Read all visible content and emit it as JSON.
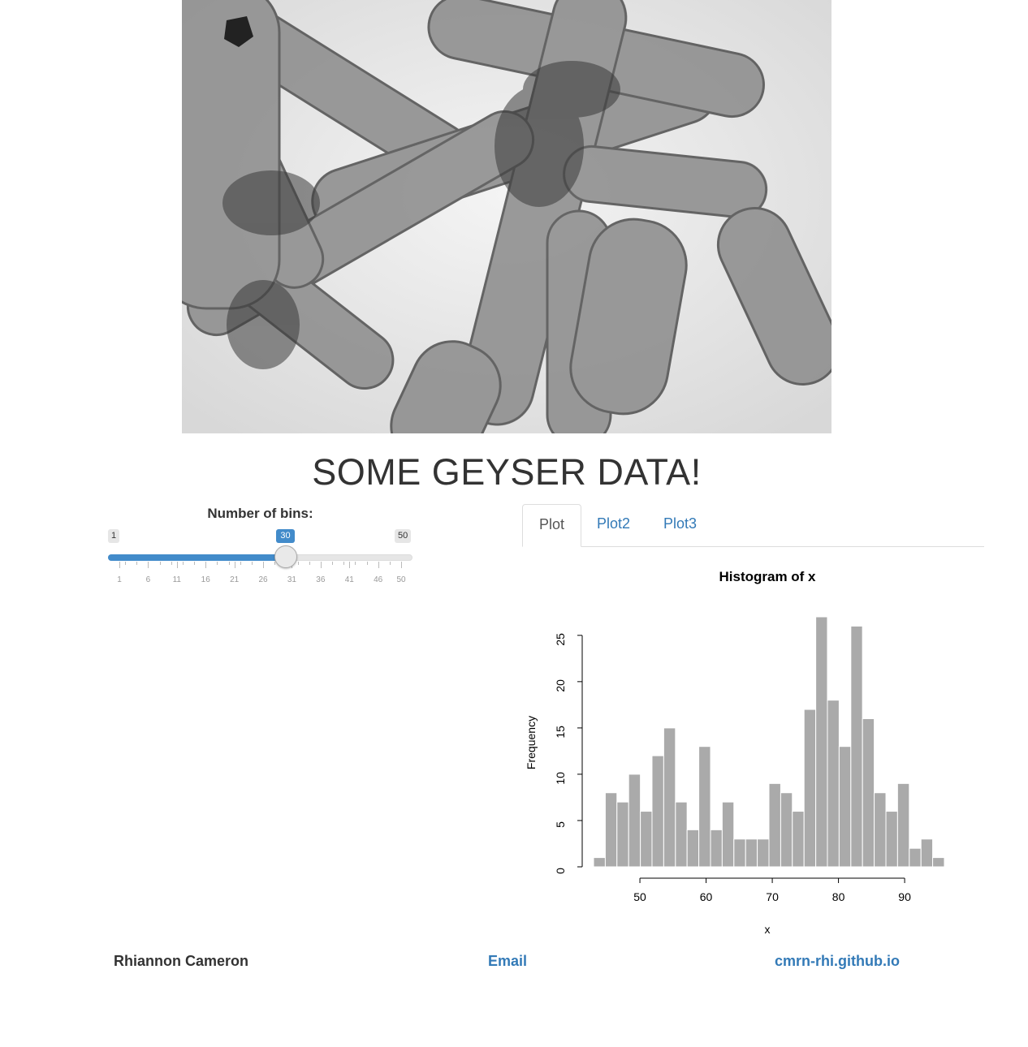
{
  "page_title": "SOME GEYSER DATA!",
  "slider": {
    "label": "Number of bins:",
    "min": 1,
    "max": 50,
    "value": 30,
    "min_label": "1",
    "max_label": "50",
    "value_label": "30",
    "tick_labels": [
      "1",
      "6",
      "11",
      "16",
      "21",
      "26",
      "31",
      "36",
      "41",
      "46",
      "50"
    ],
    "accent_color": "#428bca"
  },
  "tabs": [
    {
      "label": "Plot",
      "active": true
    },
    {
      "label": "Plot2",
      "active": false
    },
    {
      "label": "Plot3",
      "active": false
    }
  ],
  "chart_data": {
    "type": "bar",
    "title": "Histogram of x",
    "xlabel": "x",
    "ylabel": "Frequency",
    "bin_edges": [
      43,
      44.77,
      46.53,
      48.3,
      50.07,
      51.83,
      53.6,
      55.37,
      57.13,
      58.9,
      60.67,
      62.43,
      64.2,
      65.97,
      67.73,
      69.5,
      71.27,
      73.03,
      74.8,
      76.57,
      78.33,
      80.1,
      81.87,
      83.63,
      85.4,
      87.17,
      88.93,
      90.7,
      92.47,
      94.23,
      96
    ],
    "values": [
      1,
      8,
      7,
      10,
      6,
      12,
      15,
      7,
      4,
      13,
      4,
      7,
      3,
      3,
      3,
      9,
      8,
      6,
      17,
      27,
      18,
      13,
      26,
      16,
      8,
      6,
      9,
      2,
      3,
      1
    ],
    "xticks": [
      "50",
      "60",
      "70",
      "80",
      "90"
    ],
    "yticks": [
      "0",
      "5",
      "10",
      "15",
      "20",
      "25"
    ],
    "xlim": [
      43,
      96
    ],
    "ylim": [
      0,
      27
    ],
    "bar_color": "#aaaaaa",
    "grid": false,
    "legend": "none"
  },
  "footer": {
    "name": "Rhiannon Cameron",
    "email_label": "Email",
    "site_label": "cmrn-rhi.github.io"
  }
}
